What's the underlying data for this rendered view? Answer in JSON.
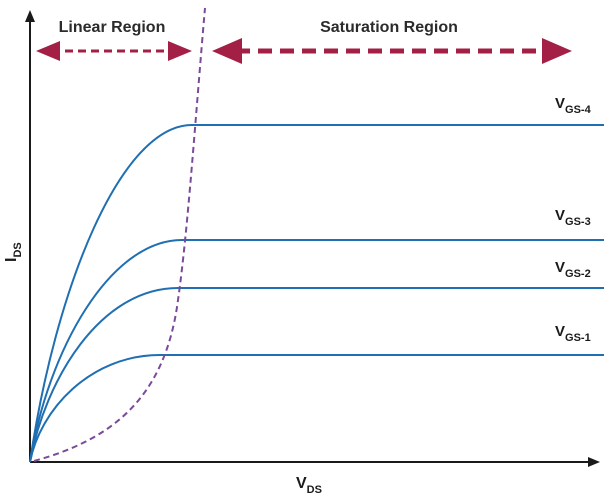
{
  "regions": {
    "linear_label": "Linear Region",
    "saturation_label": "Saturation Region"
  },
  "axes": {
    "x_main": "V",
    "x_sub": "DS",
    "y_main": "I",
    "y_sub": "DS"
  },
  "curves": [
    {
      "main": "V",
      "sub": "GS-4",
      "level": 4
    },
    {
      "main": "V",
      "sub": "GS-3",
      "level": 3
    },
    {
      "main": "V",
      "sub": "GS-2",
      "level": 2
    },
    {
      "main": "V",
      "sub": "GS-1",
      "level": 1
    }
  ],
  "colors": {
    "curve": "#1f6fb2",
    "boundary": "#7a4a9a",
    "arrow": "#a31f45",
    "axis": "#1a1a1a"
  }
}
